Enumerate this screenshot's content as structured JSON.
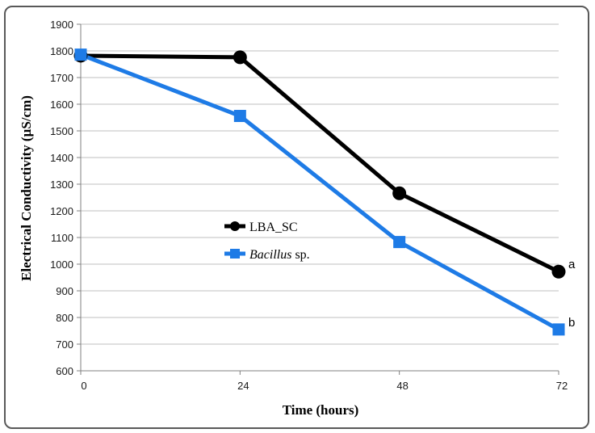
{
  "chart_data": {
    "type": "line",
    "title": "",
    "xlabel": "Time (hours)",
    "ylabel": "Electrical Conductivity (µS/cm)",
    "x": [
      0,
      24,
      48,
      72
    ],
    "x_tick_labels": [
      "0",
      "24",
      "48",
      "72"
    ],
    "xlim": [
      0,
      72
    ],
    "ylim": [
      600,
      1900
    ],
    "y_ticks": [
      600,
      700,
      800,
      900,
      1000,
      1100,
      1200,
      1300,
      1400,
      1500,
      1600,
      1700,
      1800,
      1900
    ],
    "grid": "horizontal",
    "legend_position": "center-left",
    "series": [
      {
        "name": "LBA_SC",
        "name_parts": [
          {
            "text": "LBA_SC",
            "italic": false
          }
        ],
        "values": [
          1782,
          1776,
          1266,
          972
        ],
        "color": "#000000",
        "marker": "circle",
        "end_annotation": "a"
      },
      {
        "name": "Bacillus sp.",
        "name_parts": [
          {
            "text": "Bacillus",
            "italic": true
          },
          {
            "text": " sp.",
            "italic": false
          }
        ],
        "values": [
          1786,
          1556,
          1083,
          755
        ],
        "color": "#1e7be6",
        "marker": "square",
        "end_annotation": "b"
      }
    ]
  }
}
